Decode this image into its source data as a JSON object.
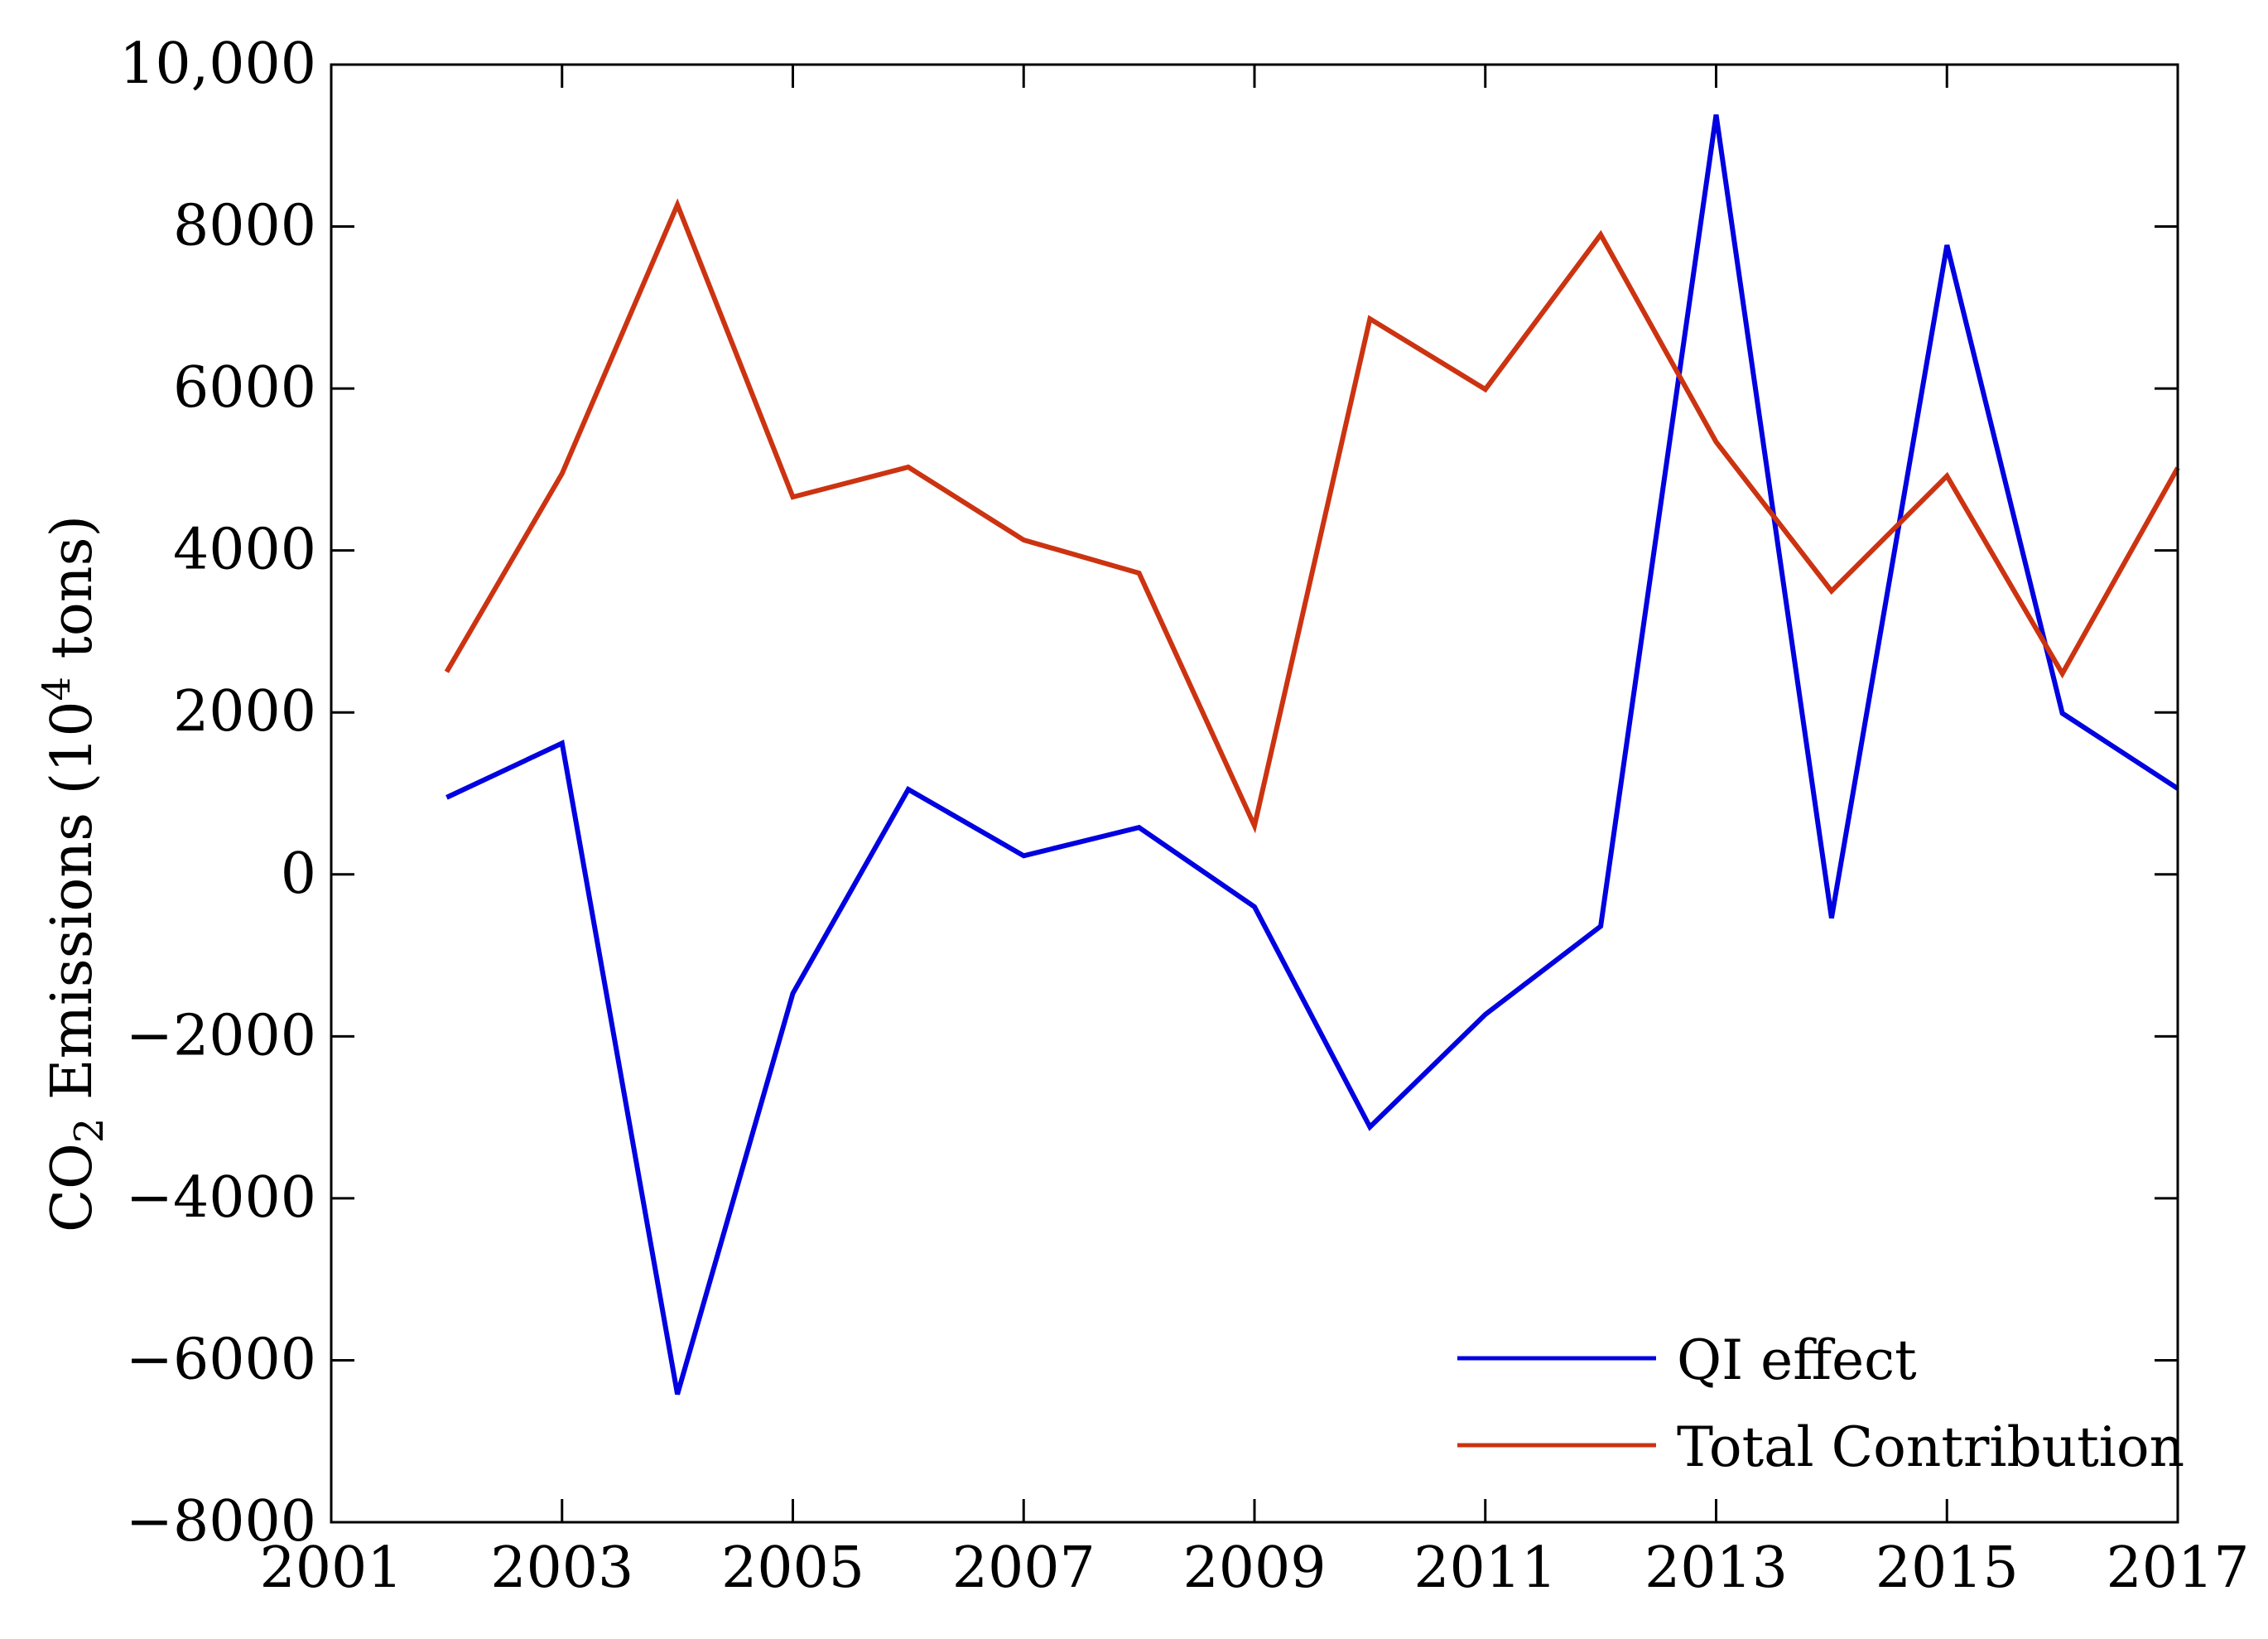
{
  "chart_data": {
    "type": "line",
    "title": "",
    "xlabel": "",
    "ylabel_prefix": "CO",
    "ylabel_sub": "2",
    "ylabel_mid": " Emissions (10",
    "ylabel_sup": "4",
    "ylabel_suffix": " tons)",
    "xlim": [
      2001,
      2017
    ],
    "ylim": [
      -8000,
      10000
    ],
    "xticks": [
      2001,
      2003,
      2005,
      2007,
      2009,
      2011,
      2013,
      2015,
      2017
    ],
    "xtick_labels": [
      "2001",
      "2003",
      "2005",
      "2007",
      "2009",
      "2011",
      "2013",
      "2015",
      "2017"
    ],
    "yticks": [
      10000,
      8000,
      6000,
      4000,
      2000,
      0,
      -2000,
      -4000,
      -6000,
      -8000
    ],
    "ytick_labels": [
      "10,000",
      "8000",
      "6000",
      "4000",
      "2000",
      "0",
      "−2000",
      "−4000",
      "−6000",
      "−8000"
    ],
    "legend_position": "bottom-right",
    "series": [
      {
        "name": "QI effect",
        "color": "#0000e0",
        "x": [
          2002,
          2003,
          2004,
          2005,
          2006,
          2007,
          2008,
          2009,
          2010,
          2011,
          2012,
          2013,
          2014,
          2015,
          2016,
          2017
        ],
        "values": [
          950,
          1620,
          -6420,
          -1470,
          1050,
          230,
          580,
          -400,
          -3120,
          -1730,
          -640,
          9380,
          -540,
          7770,
          1990,
          1060
        ]
      },
      {
        "name": "Total Contribution",
        "color": "#cc3311",
        "x": [
          2002,
          2003,
          2004,
          2005,
          2006,
          2007,
          2008,
          2009,
          2010,
          2011,
          2012,
          2013,
          2014,
          2015,
          2016,
          2017
        ],
        "values": [
          2500,
          4950,
          8270,
          4660,
          5030,
          4130,
          3720,
          600,
          6860,
          5990,
          7900,
          5340,
          3500,
          4920,
          2480,
          5020
        ]
      }
    ]
  }
}
